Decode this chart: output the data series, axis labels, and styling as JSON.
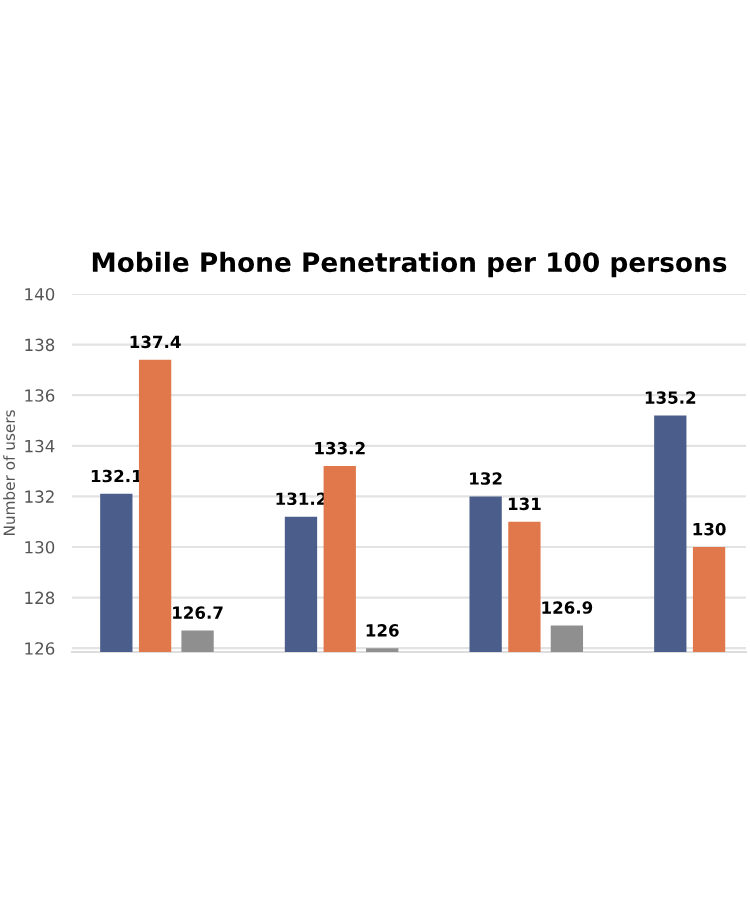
{
  "chart_data": {
    "type": "bar",
    "title": "Mobile Phone Penetration per 100 persons",
    "ylabel": "Number of users",
    "categories": [
      null,
      null,
      null,
      null
    ],
    "series": [
      {
        "color": "#4b5e8b",
        "values": [
          132.1,
          131.2,
          132,
          135.2
        ]
      },
      {
        "color": "#e0784b",
        "values": [
          137.4,
          133.2,
          131,
          130
        ]
      },
      {
        "color": "#8f8f8f",
        "values": [
          126.7,
          126,
          126.9,
          null
        ]
      }
    ],
    "ylim": [
      125.85,
      140
    ],
    "yticks": [
      126,
      128,
      130,
      132,
      134,
      136,
      138,
      140
    ],
    "grid": "y",
    "data_labels": true,
    "legend": false
  }
}
